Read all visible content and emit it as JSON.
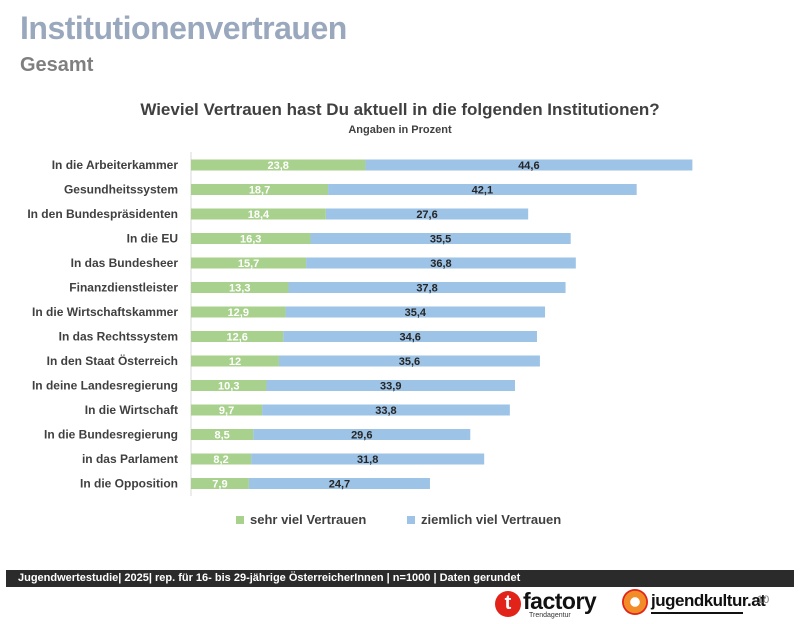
{
  "header": {
    "title": "Institutionenvertrauen",
    "subtitle": "Gesamt"
  },
  "footer": {
    "text": "Jugendwertestudie| 2025| rep. für 16- bis 29-jährige ÖsterreicherInnen | n=1000 | Daten gerundet",
    "page_number": "10",
    "logo_tfactory": "factory",
    "logo_tfactory_letter": "t",
    "logo_tfactory_sub": "Trendagentur",
    "logo_jugendkultur": "jugendkultur.at"
  },
  "colors": {
    "sehr": "#a9d18e",
    "ziemlich": "#9dc3e6"
  },
  "chart_data": {
    "type": "bar",
    "orientation": "horizontal",
    "stacked": true,
    "title": "Wieviel Vertrauen hast Du aktuell in die folgenden Institutionen?",
    "subtitle": "Angaben in Prozent",
    "categories": [
      "In die Arbeiterkammer",
      "Gesundheitssystem",
      "In den Bundespräsidenten",
      "In die EU",
      "In das Bundesheer",
      "Finanzdienstleister",
      "In die Wirtschaftskammer",
      "In das Rechtssystem",
      "In den Staat Österreich",
      "In deine Landesregierung",
      "In die Wirtschaft",
      "In die Bundesregierung",
      "in das Parlament",
      "In die Opposition"
    ],
    "series": [
      {
        "name": "sehr viel Vertrauen",
        "values": [
          23.8,
          18.7,
          18.4,
          16.3,
          15.7,
          13.3,
          12.9,
          12.6,
          12,
          10.3,
          9.7,
          8.5,
          8.2,
          7.9
        ],
        "labels": [
          "23,8",
          "18,7",
          "18,4",
          "16,3",
          "15,7",
          "13,3",
          "12,9",
          "12,6",
          "12",
          "10,3",
          "9,7",
          "8,5",
          "8,2",
          "7,9"
        ]
      },
      {
        "name": "ziemlich viel Vertrauen",
        "values": [
          44.6,
          42.1,
          27.6,
          35.5,
          36.8,
          37.8,
          35.4,
          34.6,
          35.6,
          33.9,
          33.8,
          29.6,
          31.8,
          24.7
        ],
        "labels": [
          "44,6",
          "42,1",
          "27,6",
          "35,5",
          "36,8",
          "37,8",
          "35,4",
          "34,6",
          "35,6",
          "33,9",
          "33,8",
          "29,6",
          "31,8",
          "24,7"
        ]
      }
    ],
    "xlim": [
      0,
      70
    ],
    "legend_position": "bottom"
  }
}
